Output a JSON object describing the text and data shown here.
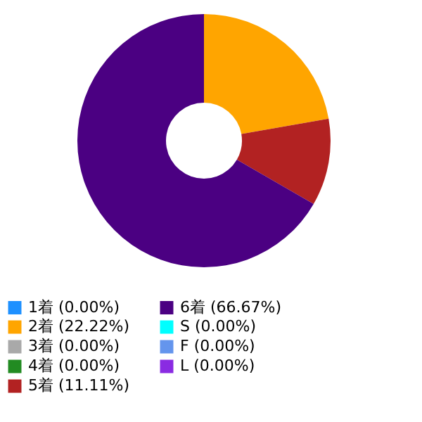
{
  "chart_data": {
    "type": "donut",
    "categories": [
      "1着 (0.00%)",
      "2着 (22.22%)",
      "3着 (0.00%)",
      "4着 (0.00%)",
      "5着 (11.11%)",
      "6着 (66.67%)",
      "S (0.00%)",
      "F (0.00%)",
      "L (0.00%)"
    ],
    "values": [
      0,
      22.22,
      0,
      0,
      11.11,
      66.67,
      0,
      0,
      0
    ],
    "colors": [
      "#1e90ff",
      "#ffa500",
      "#a9a9a9",
      "#228b22",
      "#b22222",
      "#4b0082",
      "#00ffff",
      "#6495ed",
      "#8a2be2"
    ],
    "legend": "bottom"
  }
}
